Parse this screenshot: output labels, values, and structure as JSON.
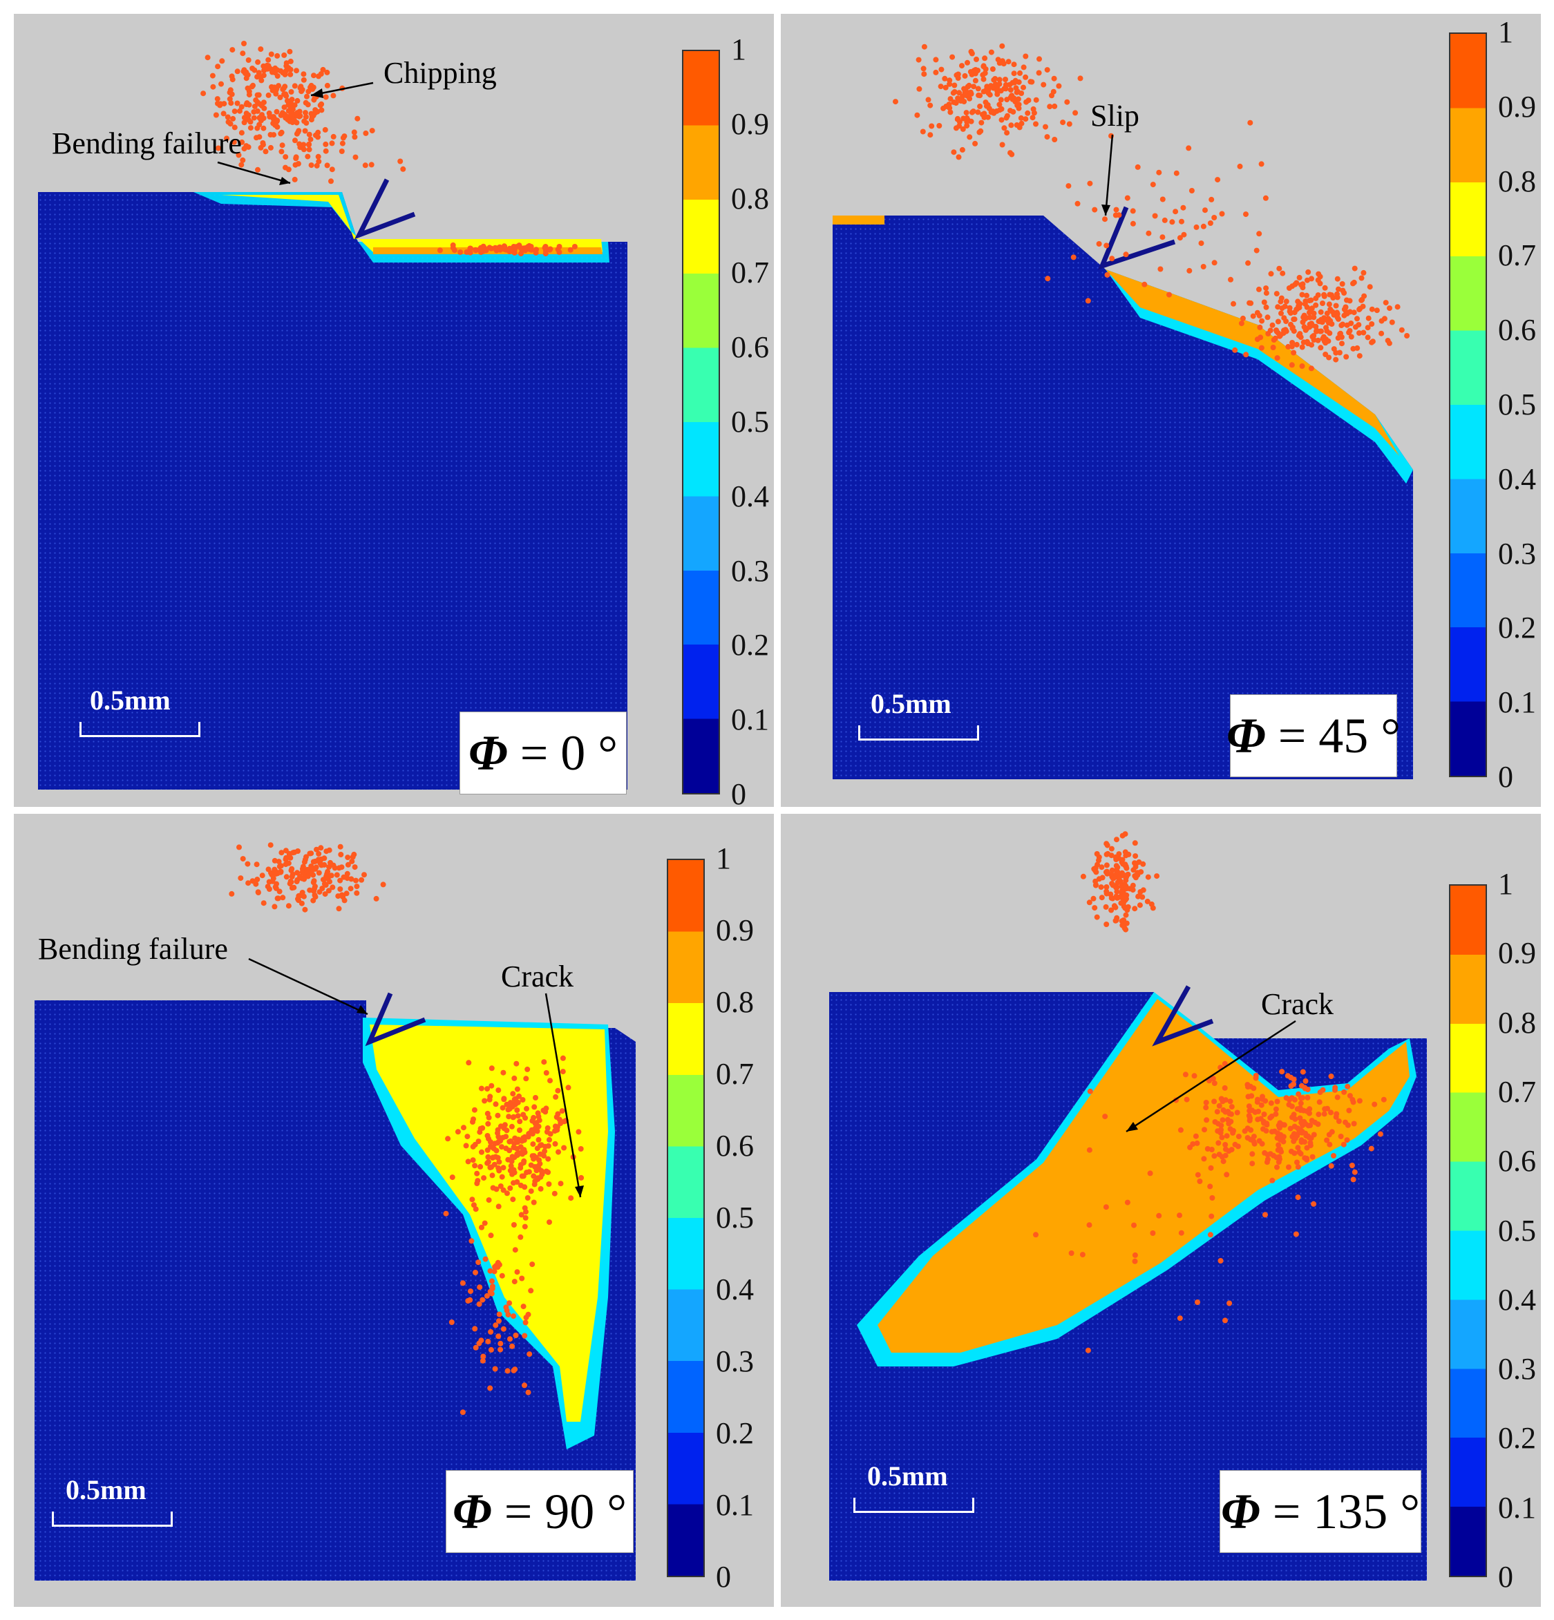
{
  "colorbar": {
    "ticks": [
      "1",
      "0.9",
      "0.8",
      "0.7",
      "0.6",
      "0.5",
      "0.4",
      "0.3",
      "0.2",
      "0.1",
      "0"
    ],
    "colors": [
      "#ff5a00",
      "#ffa500",
      "#ffff00",
      "#9aff3a",
      "#38ffb0",
      "#00e5ff",
      "#14a6ff",
      "#0064ff",
      "#0022ee",
      "#000098"
    ]
  },
  "panels": [
    {
      "phi_symbol": "Φ",
      "angle_text": "= 0 °",
      "scale": "0.5mm",
      "annotations": {
        "chipping": "Chipping",
        "bending": "Bending failure"
      }
    },
    {
      "phi_symbol": "Φ",
      "angle_text": "= 45 °",
      "scale": "0.5mm",
      "annotations": {
        "slip": "Slip"
      }
    },
    {
      "phi_symbol": "Φ",
      "angle_text": "= 90 °",
      "scale": "0.5mm",
      "annotations": {
        "bending": "Bending failure",
        "crack": "Crack"
      }
    },
    {
      "phi_symbol": "Φ",
      "angle_text": "= 135 °",
      "scale": "0.5mm",
      "annotations": {
        "crack": "Crack"
      }
    }
  ],
  "colors": {
    "background": "#cbcbcb",
    "workpiece": "#0a1aa8",
    "particle": "#ff5a1e",
    "tool": "#10128a"
  }
}
